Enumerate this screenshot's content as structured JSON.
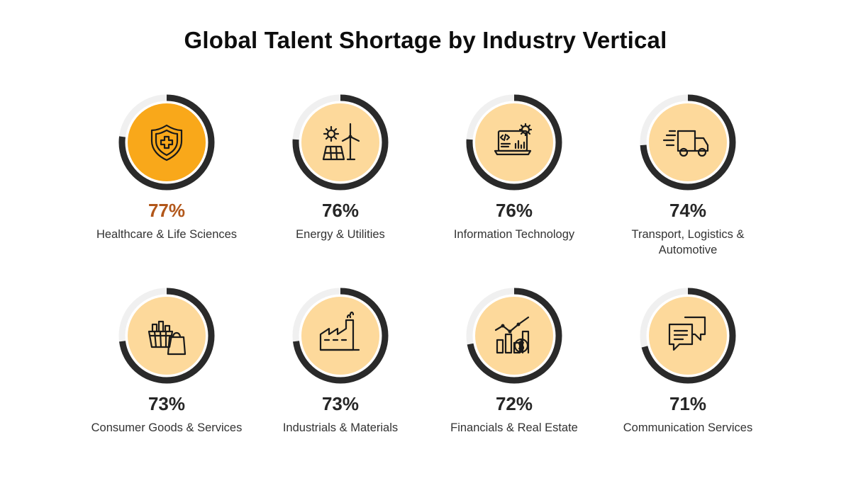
{
  "title": "Global Talent Shortage by Industry Vertical",
  "colors": {
    "ring_track": "#f0f0f0",
    "ring_arc": "#2a2a2a",
    "inner_fill": "#fdd99b",
    "inner_fill_highlight": "#f9a81a",
    "pct_highlight": "#b2571a",
    "pct_default": "#262626"
  },
  "chart_data": {
    "type": "bar",
    "title": "Global Talent Shortage by Industry Vertical",
    "unit": "%",
    "categories": [
      "Healthcare & Life Sciences",
      "Energy & Utilities",
      "Information Technology",
      "Transport, Logistics & Automotive",
      "Consumer Goods & Services",
      "Industrials & Materials",
      "Financials & Real Estate",
      "Communication Services"
    ],
    "values": [
      77,
      76,
      76,
      74,
      73,
      73,
      72,
      71
    ],
    "labels": [
      "77%",
      "76%",
      "76%",
      "74%",
      "73%",
      "73%",
      "72%",
      "71%"
    ],
    "highlight_index": 0
  },
  "items": [
    {
      "pct": "77%",
      "label": "Healthcare & Life Sciences",
      "icon": "shield-medical-icon"
    },
    {
      "pct": "76%",
      "label": "Energy & Utilities",
      "icon": "solar-wind-icon"
    },
    {
      "pct": "76%",
      "label": "Information Technology",
      "icon": "laptop-gear-icon"
    },
    {
      "pct": "74%",
      "label": "Transport, Logistics & Automotive",
      "icon": "delivery-truck-icon"
    },
    {
      "pct": "73%",
      "label": "Consumer Goods & Services",
      "icon": "shopping-basket-icon"
    },
    {
      "pct": "73%",
      "label": "Industrials & Materials",
      "icon": "factory-icon"
    },
    {
      "pct": "72%",
      "label": "Financials & Real Estate",
      "icon": "finance-chart-icon"
    },
    {
      "pct": "71%",
      "label": "Communication Services",
      "icon": "chat-bubbles-icon"
    }
  ]
}
